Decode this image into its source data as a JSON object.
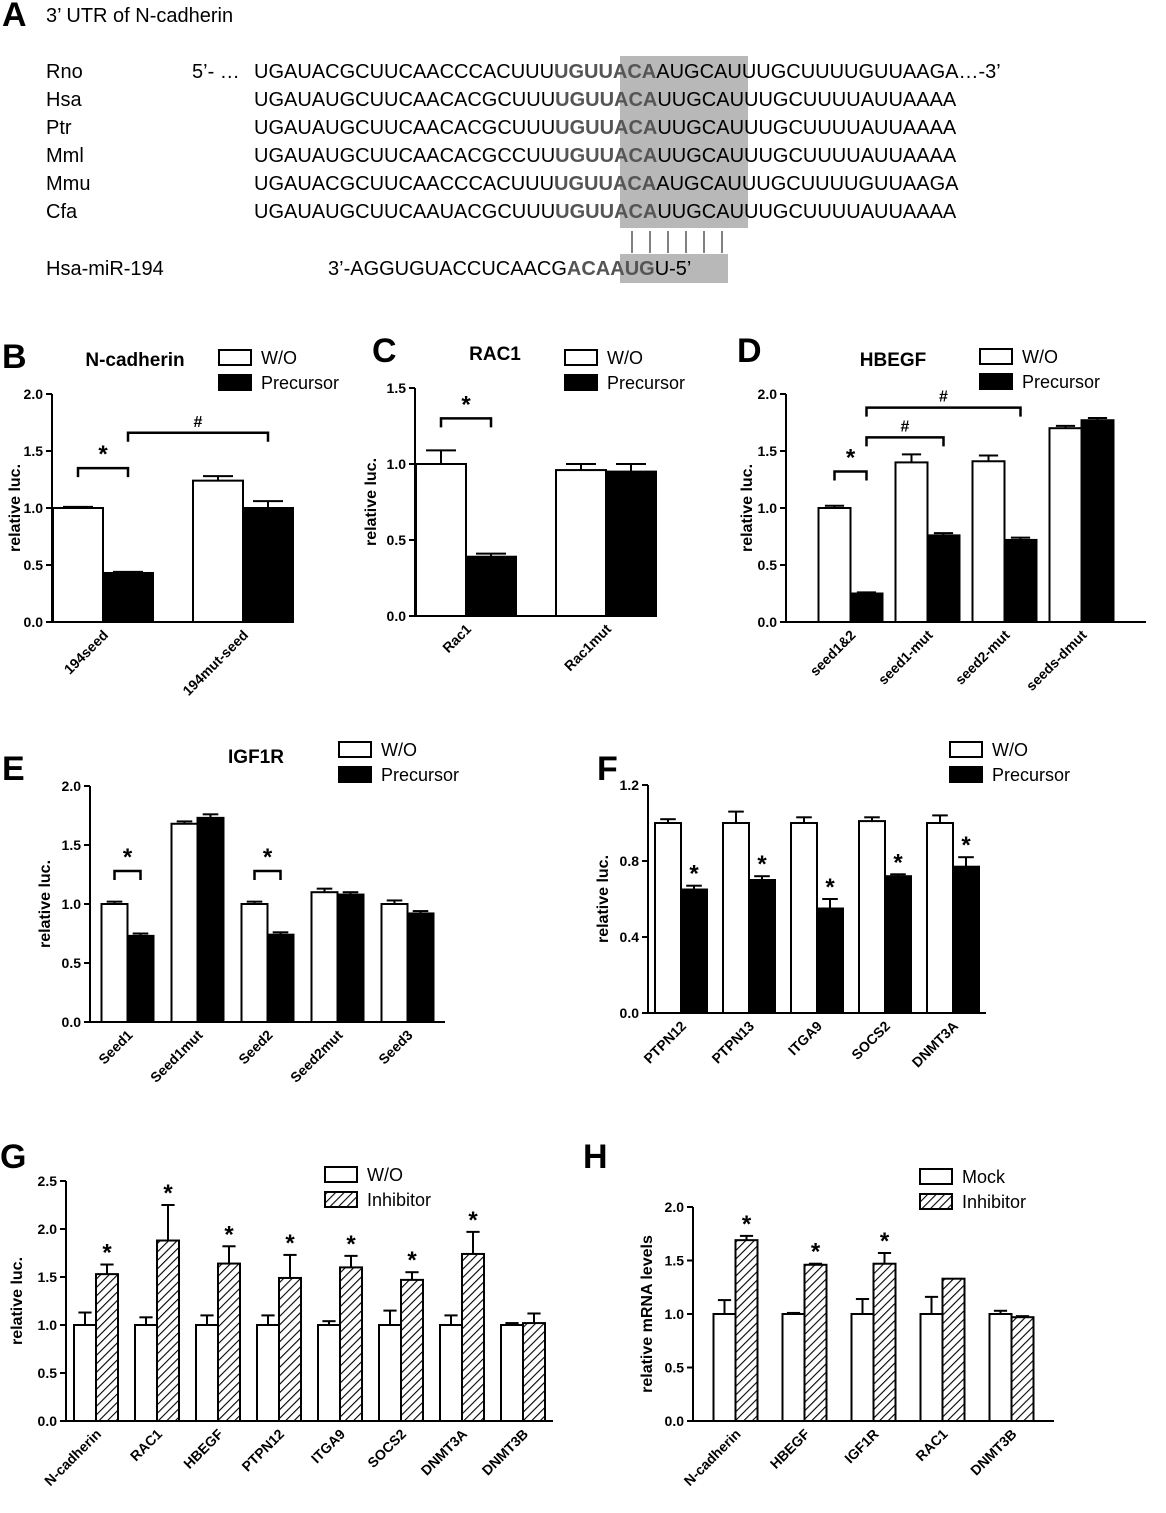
{
  "panel_a": {
    "letter": "A",
    "title": "3’ UTR of N-cadherin",
    "sequences": [
      {
        "species": "Rno",
        "prefix": "5’- …",
        "left": "UGAUACGCUUCAACCCACUUU",
        "seed": "UGUUACA",
        "right": "AUGCAUUUGCUUUUGUUAAGA",
        "suffix": "…-3’"
      },
      {
        "species": "Hsa",
        "prefix": "",
        "left": "UGAUAUGCUUCAACACGCUUU",
        "seed": "UGUUACA",
        "right": "UUGCAUUUGCUUUUAUUAAAA",
        "suffix": ""
      },
      {
        "species": "Ptr",
        "prefix": "",
        "left": "UGAUAUGCUUCAACACGCUUU",
        "seed": "UGUUACA",
        "right": "UUGCAUUUGCUUUUAUUAAAA",
        "suffix": ""
      },
      {
        "species": "Mml",
        "prefix": "",
        "left": "UGAUAUGCUUCAACACGCCUU",
        "seed": "UGUUACA",
        "right": "UUGCAUUUGCUUUUAUUAAAA",
        "suffix": ""
      },
      {
        "species": "Mmu",
        "prefix": "",
        "left": "UGAUACGCUUCAACCCACUUU",
        "seed": "UGUUACA",
        "right": "AUGCAUUUGCUUUUGUUAAGA",
        "suffix": ""
      },
      {
        "species": "Cfa",
        "prefix": "",
        "left": "UGAUAUGCUUCAAUACGCUUU",
        "seed": "UGUUACA",
        "right": "UUGCAUUUGCUUUUAUUAAAA",
        "suffix": ""
      }
    ],
    "mirna": {
      "name": "Hsa-miR-194",
      "left": "3’-AGGUGUACCUCAACG",
      "seed": "ACAAUG",
      "right": "U-5’"
    }
  },
  "colors": {
    "seed_highlight": "#b8b8b8",
    "seed_text": "#555555",
    "bar_open": "#ffffff",
    "bar_solid": "#000000"
  },
  "chart_data": [
    {
      "id": "B",
      "letter": "B",
      "type": "bar",
      "title": "N-cadherin",
      "ylabel": "relative luc.",
      "ylim": [
        0,
        2.0
      ],
      "yticks": [
        "0.0",
        "0.5",
        "1.0",
        "1.5",
        "2.0"
      ],
      "categories": [
        "194seed",
        "194mut-seed"
      ],
      "legend": {
        "placement": "top-right",
        "items": [
          {
            "label": "W/O",
            "style": "open"
          },
          {
            "label": "Precursor",
            "style": "solid"
          }
        ]
      },
      "series": [
        {
          "name": "W/O",
          "style": "open",
          "values": [
            1.0,
            1.24
          ],
          "errors": [
            0.01,
            0.04
          ]
        },
        {
          "name": "Precursor",
          "style": "solid",
          "values": [
            0.43,
            1.0
          ],
          "errors": [
            0.01,
            0.06
          ]
        }
      ],
      "significance": [
        {
          "mark": "*",
          "from": [
            0,
            0
          ],
          "to": [
            0,
            1
          ],
          "y": 1.35
        },
        {
          "mark": "#",
          "from": [
            0,
            1
          ],
          "to": [
            1,
            1
          ],
          "y": 1.66
        }
      ]
    },
    {
      "id": "C",
      "letter": "C",
      "type": "bar",
      "title": "RAC1",
      "ylabel": "relative luc.",
      "ylim": [
        0,
        1.5
      ],
      "yticks": [
        "0.0",
        "0.5",
        "1.0",
        "1.5"
      ],
      "categories": [
        "Rac1",
        "Rac1mut"
      ],
      "legend": {
        "placement": "top-right",
        "items": [
          {
            "label": "W/O",
            "style": "open"
          },
          {
            "label": "Precursor",
            "style": "solid"
          }
        ]
      },
      "series": [
        {
          "name": "W/O",
          "style": "open",
          "values": [
            1.0,
            0.96
          ],
          "errors": [
            0.09,
            0.04
          ]
        },
        {
          "name": "Precursor",
          "style": "solid",
          "values": [
            0.39,
            0.95
          ],
          "errors": [
            0.02,
            0.05
          ]
        }
      ],
      "significance": [
        {
          "mark": "*",
          "from": [
            0,
            0
          ],
          "to": [
            0,
            1
          ],
          "y": 1.3
        }
      ]
    },
    {
      "id": "D",
      "letter": "D",
      "type": "bar",
      "title": "HBEGF",
      "ylabel": "relative luc.",
      "ylim": [
        0,
        2.0
      ],
      "yticks": [
        "0.0",
        "0.5",
        "1.0",
        "1.5",
        "2.0"
      ],
      "categories": [
        "seed1&2",
        "seed1-mut",
        "seed2-mut",
        "seeds-dmut"
      ],
      "legend": {
        "placement": "top-right",
        "items": [
          {
            "label": "W/O",
            "style": "open"
          },
          {
            "label": "Precursor",
            "style": "solid"
          }
        ]
      },
      "series": [
        {
          "name": "W/O",
          "style": "open",
          "values": [
            1.0,
            1.4,
            1.41,
            1.7
          ],
          "errors": [
            0.02,
            0.07,
            0.05,
            0.02
          ]
        },
        {
          "name": "Precursor",
          "style": "solid",
          "values": [
            0.25,
            0.76,
            0.72,
            1.77
          ],
          "errors": [
            0.01,
            0.02,
            0.02,
            0.02
          ]
        }
      ],
      "significance": [
        {
          "mark": "*",
          "from": [
            0,
            0
          ],
          "to": [
            0,
            1
          ],
          "y": 1.32
        },
        {
          "mark": "#",
          "from": [
            0,
            1
          ],
          "to": [
            1,
            1
          ],
          "y": 1.62
        },
        {
          "mark": "#",
          "from": [
            0,
            1
          ],
          "to": [
            2,
            1
          ],
          "y": 1.88
        }
      ]
    },
    {
      "id": "E",
      "letter": "E",
      "type": "bar",
      "title": "IGF1R",
      "ylabel": "relative luc.",
      "ylim": [
        0,
        2.0
      ],
      "yticks": [
        "0.0",
        "0.5",
        "1.0",
        "1.5",
        "2.0"
      ],
      "categories": [
        "Seed1",
        "Seed1mut",
        "Seed2",
        "Seed2mut",
        "Seed3"
      ],
      "legend": {
        "placement": "top-right",
        "items": [
          {
            "label": "W/O",
            "style": "open"
          },
          {
            "label": "Precursor",
            "style": "solid"
          }
        ]
      },
      "series": [
        {
          "name": "W/O",
          "style": "open",
          "values": [
            1.0,
            1.68,
            1.0,
            1.1,
            1.0
          ],
          "errors": [
            0.02,
            0.02,
            0.02,
            0.03,
            0.03
          ]
        },
        {
          "name": "Precursor",
          "style": "solid",
          "values": [
            0.73,
            1.73,
            0.74,
            1.08,
            0.92
          ],
          "errors": [
            0.02,
            0.03,
            0.02,
            0.02,
            0.02
          ]
        }
      ],
      "significance": [
        {
          "mark": "*",
          "from": [
            0,
            0
          ],
          "to": [
            0,
            1
          ],
          "y": 1.28
        },
        {
          "mark": "*",
          "from": [
            2,
            0
          ],
          "to": [
            2,
            1
          ],
          "y": 1.28
        }
      ]
    },
    {
      "id": "F",
      "letter": "F",
      "type": "bar",
      "title": "",
      "ylabel": "relative luc.",
      "ylim": [
        0,
        1.2
      ],
      "yticks": [
        "0.0",
        "0.4",
        "0.8",
        "1.2"
      ],
      "categories": [
        "PTPN12",
        "PTPN13",
        "ITGA9",
        "SOCS2",
        "DNMT3A"
      ],
      "legend": {
        "placement": "top-right",
        "items": [
          {
            "label": "W/O",
            "style": "open"
          },
          {
            "label": "Precursor",
            "style": "solid"
          }
        ]
      },
      "series": [
        {
          "name": "W/O",
          "style": "open",
          "values": [
            1.0,
            1.0,
            1.0,
            1.01,
            1.0
          ],
          "errors": [
            0.02,
            0.06,
            0.03,
            0.02,
            0.04
          ]
        },
        {
          "name": "Precursor",
          "style": "solid",
          "values": [
            0.65,
            0.7,
            0.55,
            0.72,
            0.77
          ],
          "errors": [
            0.02,
            0.02,
            0.05,
            0.01,
            0.05
          ]
        }
      ],
      "stars_on_series": 1
    },
    {
      "id": "G",
      "letter": "G",
      "type": "bar",
      "title": "",
      "ylabel": "relative luc.",
      "ylim": [
        0,
        2.5
      ],
      "yticks": [
        "0.0",
        "0.5",
        "1.0",
        "1.5",
        "2.0",
        "2.5"
      ],
      "categories": [
        "N-cadherin",
        "RAC1",
        "HBEGF",
        "PTPN12",
        "ITGA9",
        "SOCS2",
        "DNMT3A",
        "DNMT3B"
      ],
      "legend": {
        "placement": "top-right",
        "items": [
          {
            "label": "W/O",
            "style": "open"
          },
          {
            "label": "Inhibitor",
            "style": "hatched"
          }
        ]
      },
      "series": [
        {
          "name": "W/O",
          "style": "open",
          "values": [
            1.0,
            1.0,
            1.0,
            1.0,
            1.0,
            1.0,
            1.0,
            1.0
          ],
          "errors": [
            0.13,
            0.08,
            0.1,
            0.1,
            0.04,
            0.15,
            0.1,
            0.02
          ]
        },
        {
          "name": "Inhibitor",
          "style": "hatched",
          "values": [
            1.53,
            1.88,
            1.64,
            1.49,
            1.6,
            1.47,
            1.74,
            1.02
          ],
          "errors": [
            0.1,
            0.37,
            0.18,
            0.24,
            0.12,
            0.08,
            0.23,
            0.1
          ]
        }
      ],
      "stars_on_series": 1,
      "no_star_categories": [
        7
      ]
    },
    {
      "id": "H",
      "letter": "H",
      "type": "bar",
      "title": "",
      "ylabel": "relative mRNA levels",
      "ylim": [
        0,
        2.0
      ],
      "yticks": [
        "0.0",
        "0.5",
        "1.0",
        "1.5",
        "2.0"
      ],
      "categories": [
        "N-cadherin",
        "HBEGF",
        "IGF1R",
        "RAC1",
        "DNMT3B"
      ],
      "legend": {
        "placement": "top-right",
        "items": [
          {
            "label": "Mock",
            "style": "open"
          },
          {
            "label": "Inhibitor",
            "style": "hatched"
          }
        ]
      },
      "series": [
        {
          "name": "Mock",
          "style": "open",
          "values": [
            1.0,
            1.0,
            1.0,
            1.0,
            1.0
          ],
          "errors": [
            0.13,
            0.01,
            0.14,
            0.16,
            0.03
          ]
        },
        {
          "name": "Inhibitor",
          "style": "hatched",
          "values": [
            1.69,
            1.46,
            1.47,
            1.33,
            0.97
          ],
          "errors": [
            0.04,
            0.01,
            0.1,
            0.0,
            0.01
          ]
        }
      ],
      "stars_on_series": 1,
      "no_star_categories": [
        3,
        4
      ]
    }
  ]
}
